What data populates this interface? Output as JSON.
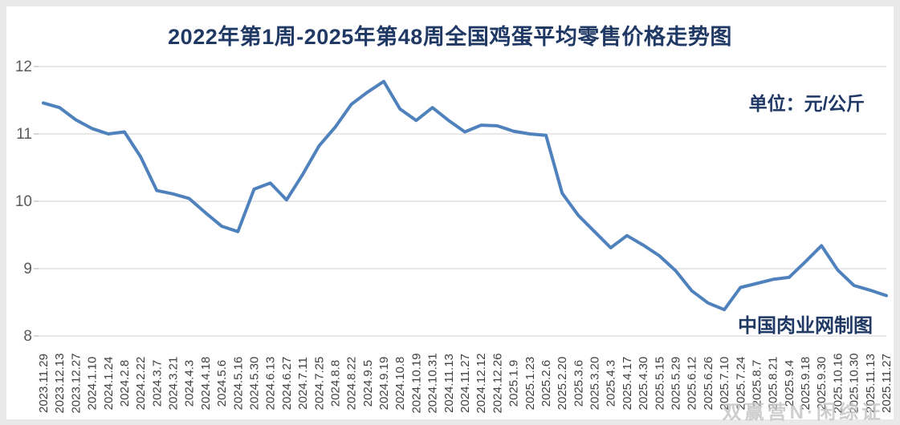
{
  "page": {
    "background_color": "#e9e9e9",
    "card_background_color": "#ffffff"
  },
  "header": {
    "title": "2022年第1周-2025年第48周全国鸡蛋平均零售价格走势图"
  },
  "annotations": {
    "unit_label": "单位：元/公斤",
    "credit_label": "中国肉业网制图",
    "watermark_text": "双赢营N·闲综证"
  },
  "chart_data": {
    "type": "line",
    "title": "2022年第1周-2025年第48周全国鸡蛋平均零售价格走势图",
    "xlabel": "",
    "ylabel": "元/公斤",
    "ylim": [
      8,
      12
    ],
    "yticks": [
      8,
      9,
      10,
      11,
      12
    ],
    "grid": "horizontal",
    "legend_position": "none",
    "categories": [
      "2023.11.29",
      "2023.12.13",
      "2023.12.27",
      "2024.1.10",
      "2024.1.24",
      "2024.2.8",
      "2024.2.22",
      "2024.3.7",
      "2024.3.21",
      "2024.4.3",
      "2024.4.18",
      "2024.5.6",
      "2024.5.16",
      "2024.5.30",
      "2024.6.13",
      "2024.6.27",
      "2024.7.11",
      "2024.7.25",
      "2024.8.8",
      "2024.8.22",
      "2024.9.5",
      "2024.9.19",
      "2024.10.8",
      "2024.10.19",
      "2024.10.31",
      "2024.11.13",
      "2024.11.27",
      "2024.12.12",
      "2024.12.26",
      "2025.1.9",
      "2025.1.23",
      "2025.2.6",
      "2025.2.20",
      "2025.3.6",
      "2025.3.20",
      "2025.4.3",
      "2025.4.17",
      "2025.4.30",
      "2025.5.15",
      "2025.5.29",
      "2025.6.12",
      "2025.6.26",
      "2025.7.10",
      "2025.7.24",
      "2025.8.7",
      "2025.8.21",
      "2025.9.4",
      "2025.9.18",
      "2025.9.30",
      "2025.10.16",
      "2025.10.30",
      "2025.11.13",
      "2025.11.27"
    ],
    "values": [
      11.46,
      11.39,
      11.21,
      11.08,
      11.0,
      11.03,
      10.66,
      10.16,
      10.11,
      10.04,
      9.83,
      9.63,
      9.55,
      10.18,
      10.27,
      10.02,
      10.4,
      10.82,
      11.1,
      11.44,
      11.62,
      11.78,
      11.37,
      11.2,
      11.39,
      11.2,
      11.03,
      11.13,
      11.12,
      11.04,
      11.0,
      10.98,
      10.12,
      9.79,
      9.55,
      9.31,
      9.49,
      9.35,
      9.19,
      8.97,
      8.67,
      8.49,
      8.39,
      8.72,
      8.78,
      8.84,
      8.87,
      9.1,
      9.34,
      8.98,
      8.75,
      8.68,
      8.6
    ],
    "line_color": "#4F81BD",
    "line_width": 4,
    "gridline_color": "#D9D9D9",
    "title_color": "#1F3864",
    "ytick_label_color": "#595959",
    "xtick_label_color": "#3F3F3F"
  }
}
